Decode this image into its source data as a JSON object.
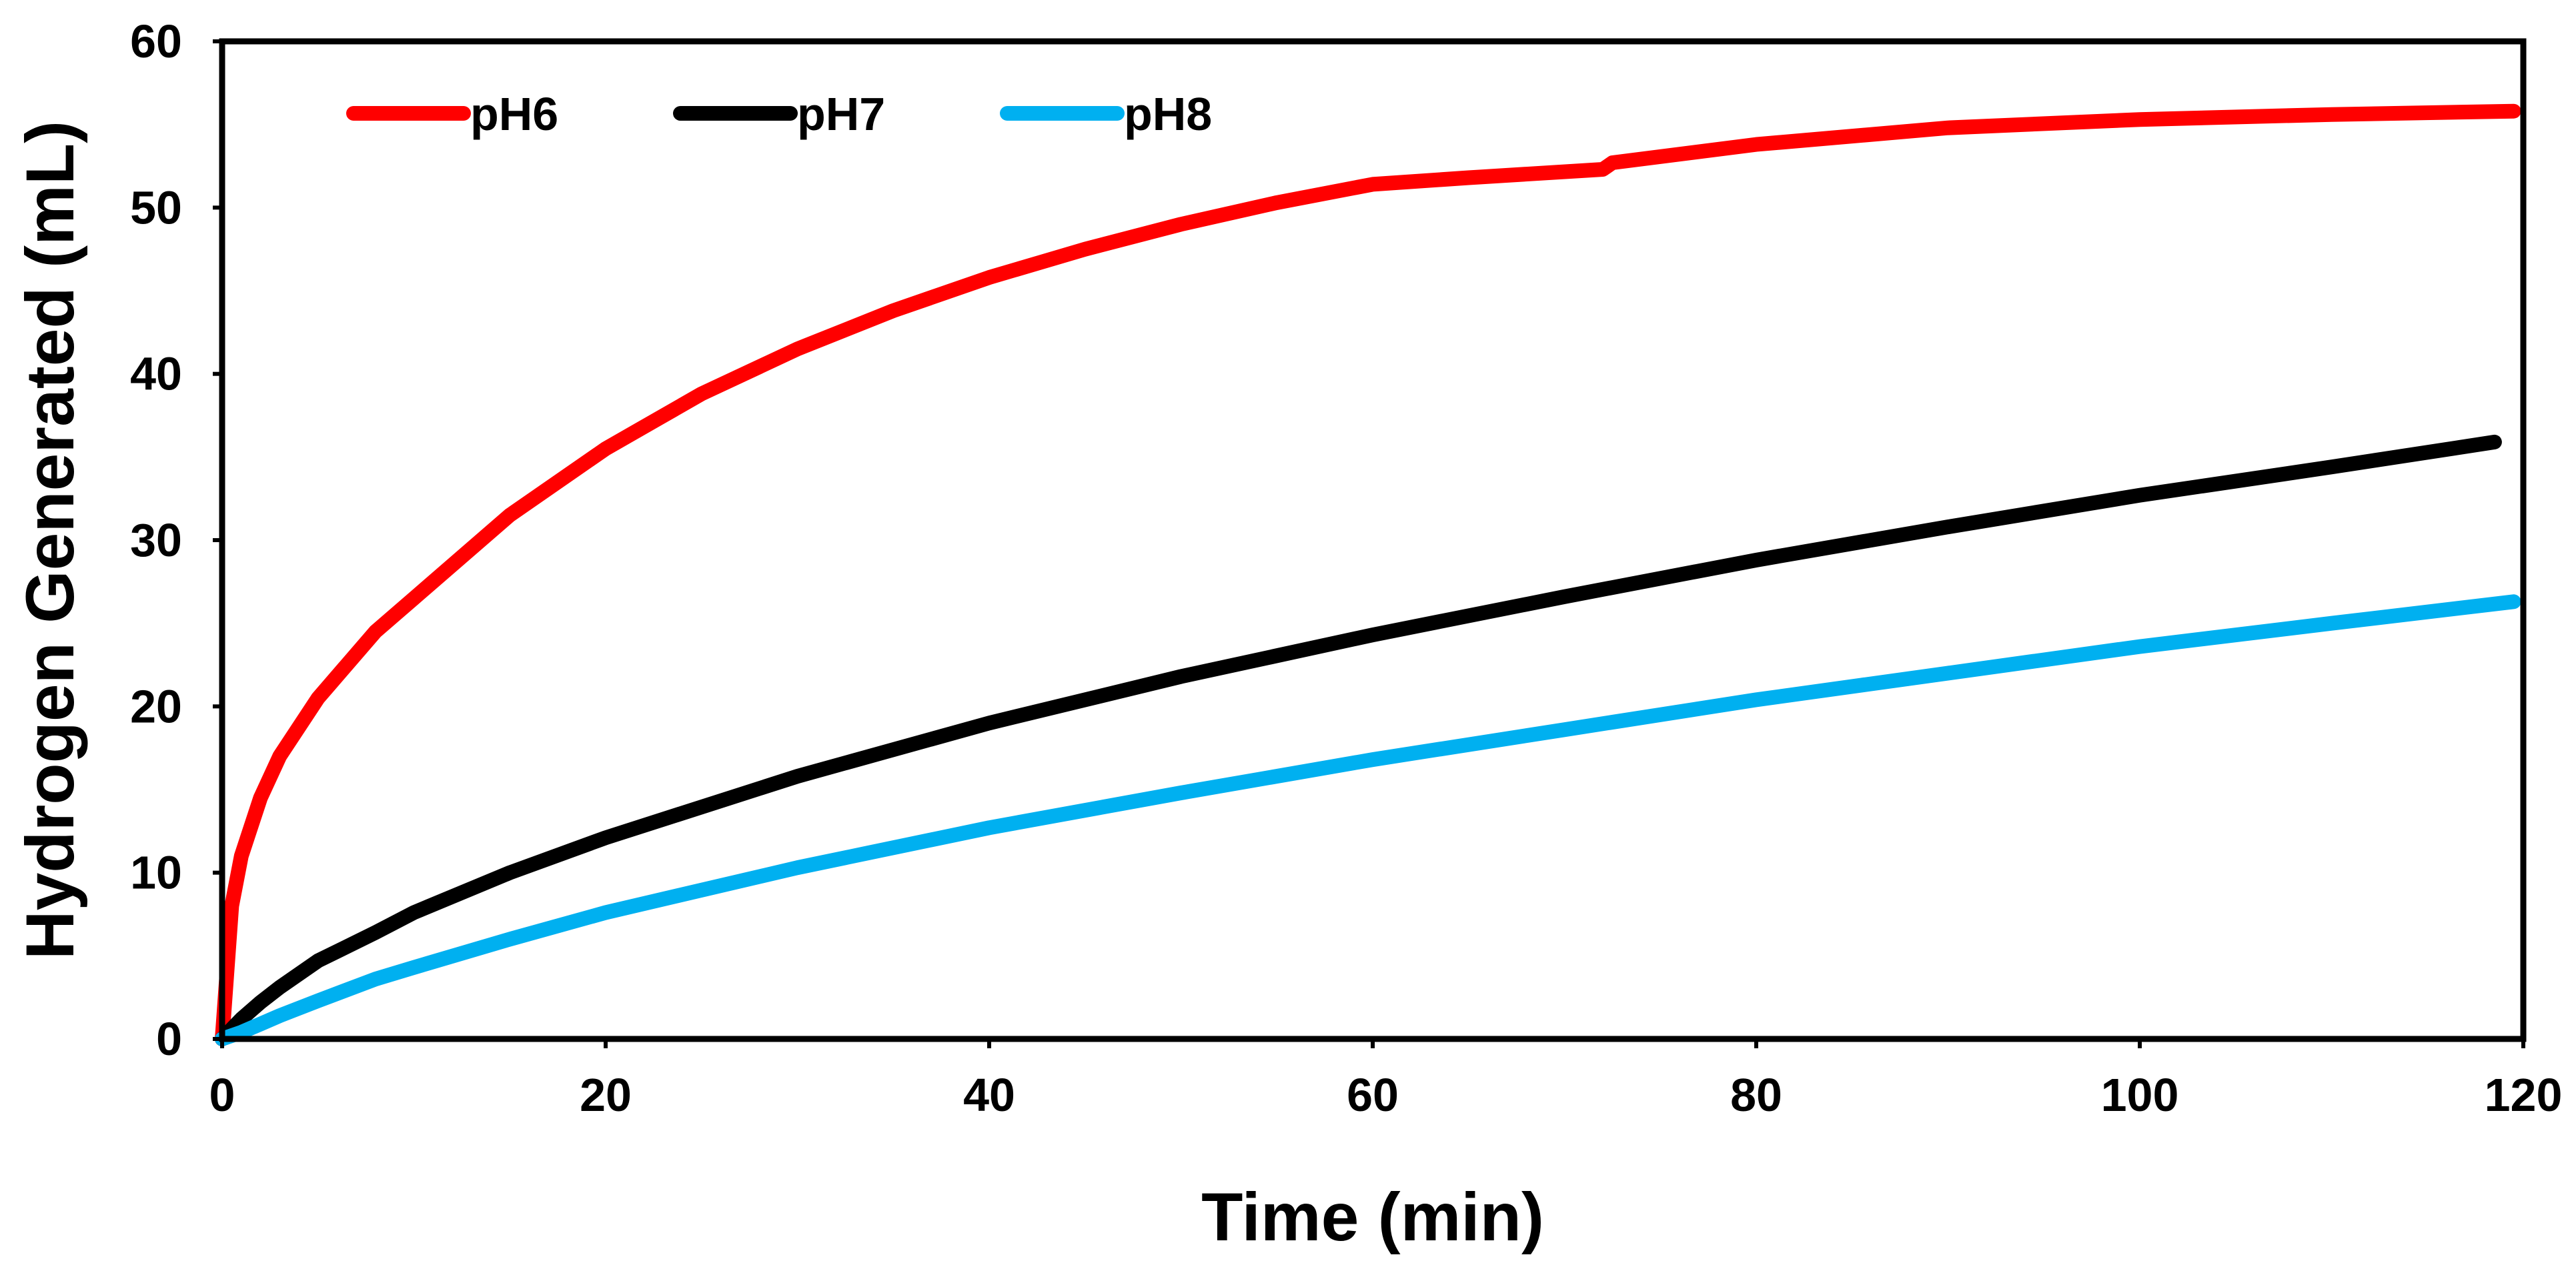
{
  "chart_data": {
    "type": "line",
    "title": "",
    "xlabel": "Time (min)",
    "ylabel": "Hydrogen Generated (mL)",
    "xlim": [
      0,
      120
    ],
    "ylim": [
      0,
      60
    ],
    "xticks": [
      "0",
      "20",
      "40",
      "60",
      "80",
      "100",
      "120"
    ],
    "yticks": [
      "0",
      "10",
      "20",
      "30",
      "40",
      "50",
      "60"
    ],
    "grid": false,
    "legend_position": "top-left",
    "series": [
      {
        "name": "pH6",
        "color": "#FF0000",
        "x": [
          0,
          0.5,
          1,
          2,
          3,
          5,
          8,
          10,
          15,
          20,
          25,
          30,
          35,
          40,
          45,
          50,
          55,
          60,
          65,
          72,
          72.5,
          80,
          90,
          100,
          110,
          119.5
        ],
        "y": [
          0,
          8.0,
          11.0,
          14.5,
          17.0,
          20.5,
          24.5,
          26.5,
          31.5,
          35.5,
          38.8,
          41.5,
          43.8,
          45.8,
          47.5,
          49.0,
          50.3,
          51.4,
          51.8,
          52.3,
          52.7,
          53.8,
          54.8,
          55.3,
          55.6,
          55.8
        ]
      },
      {
        "name": "pH7",
        "color": "#000000",
        "x": [
          0,
          0.5,
          1,
          2,
          3,
          5,
          8,
          10,
          15,
          20,
          30,
          40,
          50,
          60,
          70,
          80,
          90,
          100,
          110,
          118.5
        ],
        "y": [
          0,
          0.6,
          1.2,
          2.2,
          3.1,
          4.7,
          6.4,
          7.6,
          10.0,
          12.1,
          15.8,
          19.0,
          21.8,
          24.3,
          26.6,
          28.8,
          30.8,
          32.7,
          34.4,
          35.9
        ]
      },
      {
        "name": "pH8",
        "color": "#00B0F0",
        "x": [
          0,
          1,
          2,
          3,
          5,
          8,
          10,
          15,
          20,
          30,
          40,
          50,
          60,
          70,
          80,
          90,
          100,
          110,
          119.5
        ],
        "y": [
          0,
          0.4,
          0.9,
          1.4,
          2.3,
          3.6,
          4.3,
          6.0,
          7.6,
          10.3,
          12.7,
          14.8,
          16.8,
          18.6,
          20.4,
          22.0,
          23.6,
          25.0,
          26.3
        ]
      }
    ]
  }
}
